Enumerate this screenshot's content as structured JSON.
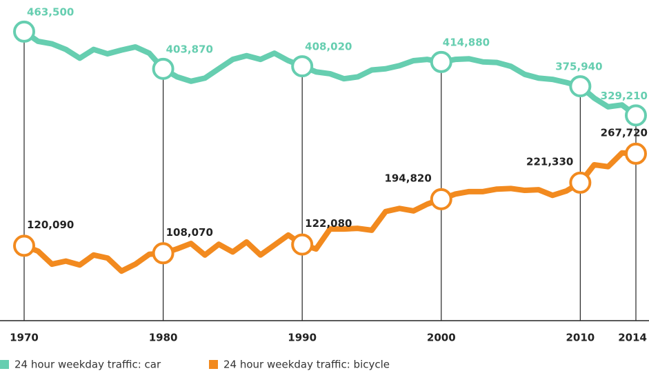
{
  "chart_data": {
    "type": "line",
    "x": [
      1970,
      1971,
      1972,
      1973,
      1974,
      1975,
      1976,
      1977,
      1978,
      1979,
      1980,
      1981,
      1982,
      1983,
      1984,
      1985,
      1986,
      1987,
      1988,
      1989,
      1990,
      1991,
      1992,
      1993,
      1994,
      1995,
      1996,
      1997,
      1998,
      1999,
      2000,
      2001,
      2002,
      2003,
      2004,
      2005,
      2006,
      2007,
      2008,
      2009,
      2010,
      2011,
      2012,
      2013,
      2014
    ],
    "xlim": [
      1970,
      2014
    ],
    "xticks": [
      1970,
      1980,
      1990,
      2000,
      2010,
      2014
    ],
    "ylim": [
      0,
      480000
    ],
    "series": [
      {
        "name": "24 hour weekday traffic: car",
        "color": "#66ceb0",
        "values": [
          463500,
          448000,
          444000,
          435000,
          421000,
          435000,
          428000,
          434000,
          439000,
          429000,
          403870,
          391000,
          384000,
          389000,
          404000,
          419000,
          425000,
          419000,
          429000,
          417000,
          408020,
          399000,
          396000,
          388000,
          391000,
          402000,
          404000,
          409000,
          417000,
          419000,
          414880,
          419000,
          420000,
          415000,
          414000,
          408000,
          395000,
          389000,
          387000,
          382000,
          375940,
          357000,
          343000,
          346000,
          329210
        ],
        "value_labels": [
          "463,500",
          null,
          null,
          null,
          null,
          null,
          null,
          null,
          null,
          null,
          "403,870",
          null,
          null,
          null,
          null,
          null,
          null,
          null,
          null,
          null,
          "408,020",
          null,
          null,
          null,
          null,
          null,
          null,
          null,
          null,
          null,
          "414,880",
          null,
          null,
          null,
          null,
          null,
          null,
          null,
          null,
          null,
          "375,940",
          null,
          null,
          null,
          "329,210"
        ]
      },
      {
        "name": "24 hour weekday traffic: bicycle",
        "color": "#f28a1f",
        "values": [
          120090,
          111500,
          90600,
          95500,
          89300,
          105300,
          100400,
          79500,
          90600,
          106500,
          108070,
          115200,
          123800,
          105300,
          122500,
          110200,
          126200,
          105300,
          121300,
          137300,
          122080,
          115000,
          147000,
          147000,
          148000,
          145000,
          175000,
          180000,
          176000,
          187000,
          194820,
          203000,
          207000,
          207000,
          211000,
          212000,
          209000,
          210000,
          201000,
          208000,
          221330,
          250000,
          247000,
          269000,
          267720
        ],
        "value_labels": [
          "120,090",
          null,
          null,
          null,
          null,
          null,
          null,
          null,
          null,
          null,
          "108,070",
          null,
          null,
          null,
          null,
          null,
          null,
          null,
          null,
          null,
          "122,080",
          null,
          null,
          null,
          null,
          null,
          null,
          null,
          null,
          null,
          "194,820",
          null,
          null,
          null,
          null,
          null,
          null,
          null,
          null,
          null,
          "221,330",
          null,
          null,
          null,
          "267,720"
        ]
      }
    ]
  }
}
